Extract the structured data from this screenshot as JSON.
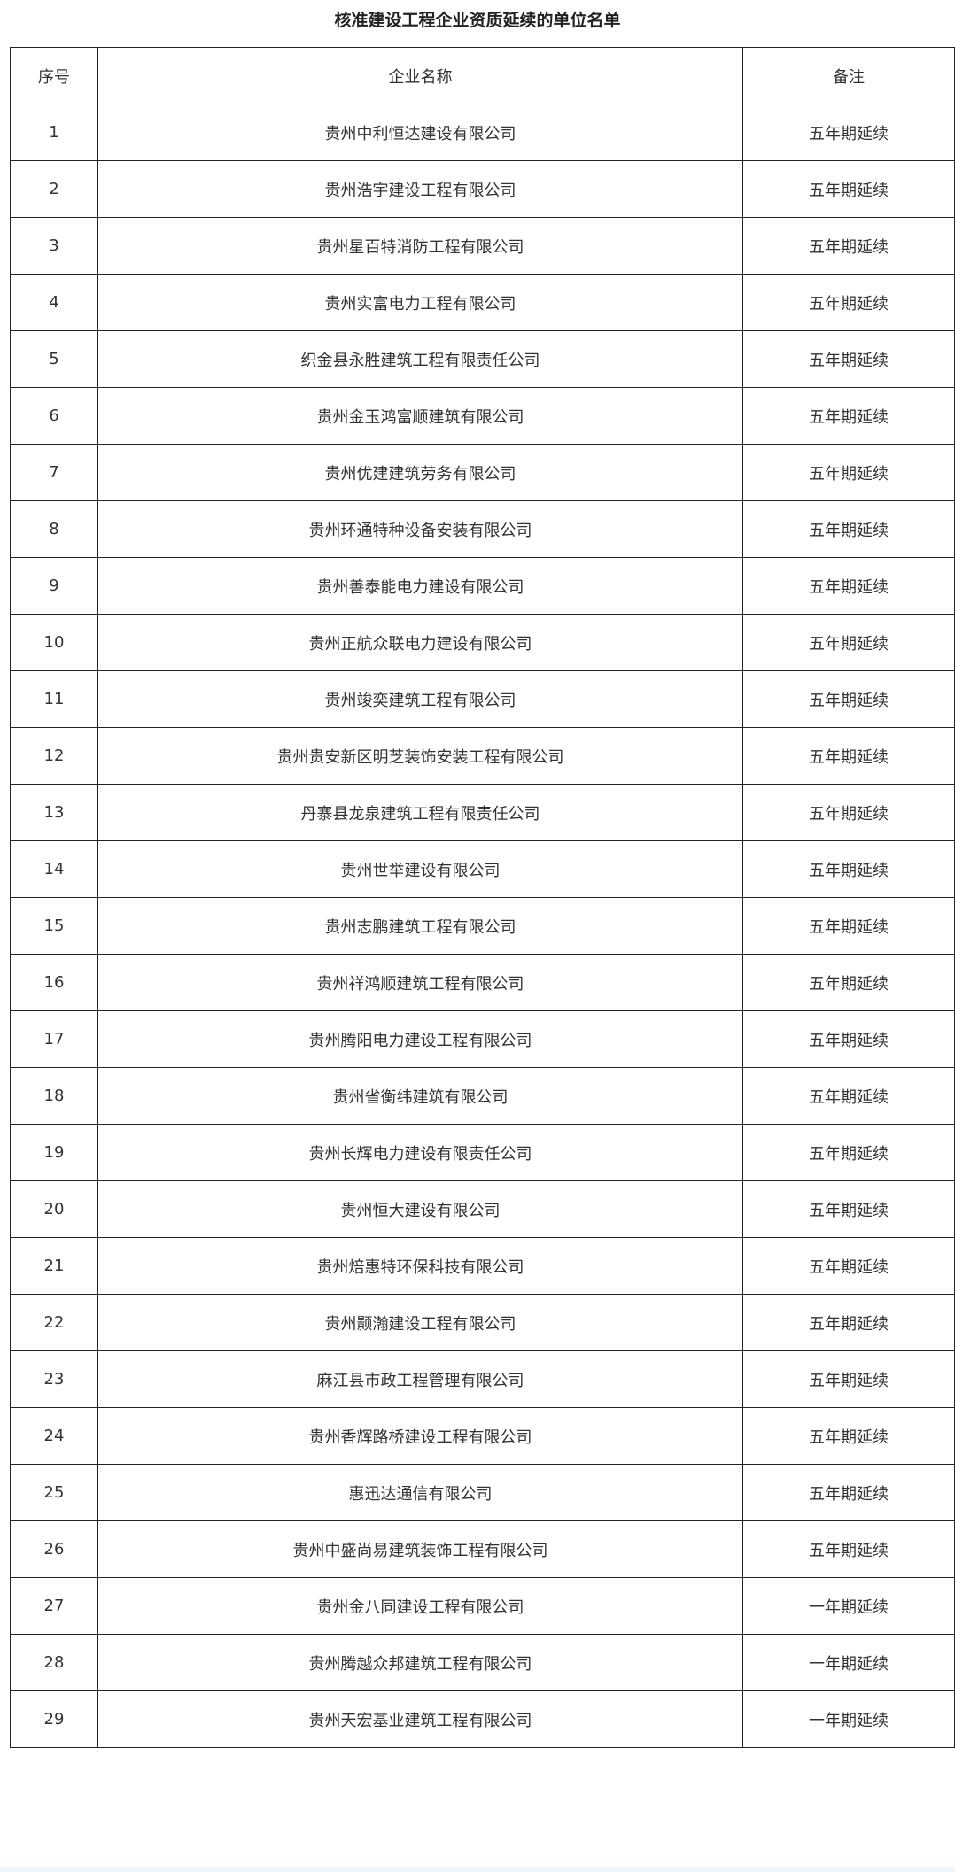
{
  "title": "核准建设工程企业资质延续的单位名单",
  "table": {
    "headers": [
      "序号",
      "企业名称",
      "备注"
    ],
    "rows": [
      [
        "1",
        "贵州中利恒达建设有限公司",
        "五年期延续"
      ],
      [
        "2",
        "贵州浩宇建设工程有限公司",
        "五年期延续"
      ],
      [
        "3",
        "贵州星百特消防工程有限公司",
        "五年期延续"
      ],
      [
        "4",
        "贵州实富电力工程有限公司",
        "五年期延续"
      ],
      [
        "5",
        "织金县永胜建筑工程有限责任公司",
        "五年期延续"
      ],
      [
        "6",
        "贵州金玉鸿富顺建筑有限公司",
        "五年期延续"
      ],
      [
        "7",
        "贵州优建建筑劳务有限公司",
        "五年期延续"
      ],
      [
        "8",
        "贵州环通特种设备安装有限公司",
        "五年期延续"
      ],
      [
        "9",
        "贵州善泰能电力建设有限公司",
        "五年期延续"
      ],
      [
        "10",
        "贵州正航众联电力建设有限公司",
        "五年期延续"
      ],
      [
        "11",
        "贵州竣奕建筑工程有限公司",
        "五年期延续"
      ],
      [
        "12",
        "贵州贵安新区明芝装饰安装工程有限公司",
        "五年期延续"
      ],
      [
        "13",
        "丹寨县龙泉建筑工程有限责任公司",
        "五年期延续"
      ],
      [
        "14",
        "贵州世举建设有限公司",
        "五年期延续"
      ],
      [
        "15",
        "贵州志鹏建筑工程有限公司",
        "五年期延续"
      ],
      [
        "16",
        "贵州祥鸿顺建筑工程有限公司",
        "五年期延续"
      ],
      [
        "17",
        "贵州腾阳电力建设工程有限公司",
        "五年期延续"
      ],
      [
        "18",
        "贵州省衡纬建筑有限公司",
        "五年期延续"
      ],
      [
        "19",
        "贵州长辉电力建设有限责任公司",
        "五年期延续"
      ],
      [
        "20",
        "贵州恒大建设有限公司",
        "五年期延续"
      ],
      [
        "21",
        "贵州焙惠特环保科技有限公司",
        "五年期延续"
      ],
      [
        "22",
        "贵州颢瀚建设工程有限公司",
        "五年期延续"
      ],
      [
        "23",
        "麻江县市政工程管理有限公司",
        "五年期延续"
      ],
      [
        "24",
        "贵州香辉路桥建设工程有限公司",
        "五年期延续"
      ],
      [
        "25",
        "惠迅达通信有限公司",
        "五年期延续"
      ],
      [
        "26",
        "贵州中盛尚易建筑装饰工程有限公司",
        "五年期延续"
      ],
      [
        "27",
        "贵州金八同建设工程有限公司",
        "一年期延续"
      ],
      [
        "28",
        "贵州腾越众邦建筑工程有限公司",
        "一年期延续"
      ],
      [
        "29",
        "贵州天宏基业建筑工程有限公司",
        "一年期延续"
      ]
    ]
  }
}
